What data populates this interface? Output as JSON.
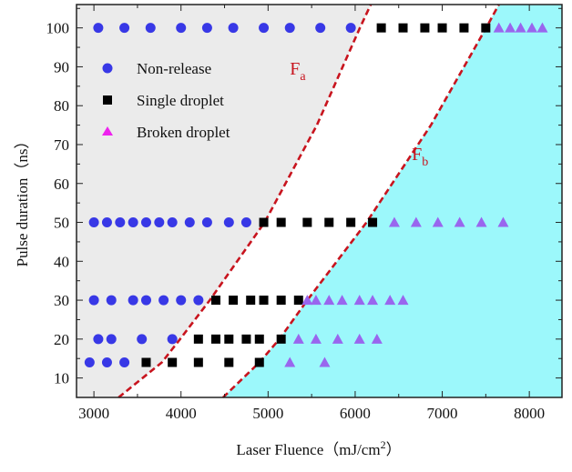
{
  "chart_data": {
    "type": "scatter",
    "title": "",
    "xlabel": "Laser Fluence（mJ/cm²）",
    "xlabel_main": "Laser Fluence（mJ/cm",
    "xlabel_sup": "2",
    "xlabel_end": "）",
    "ylabel": "Pulse duration（ns）",
    "xlim": [
      2800,
      8375
    ],
    "ylim": [
      5,
      106
    ],
    "xticks": [
      3000,
      4000,
      5000,
      6000,
      7000,
      8000
    ],
    "yticks": [
      10,
      20,
      30,
      40,
      50,
      60,
      70,
      80,
      90,
      100
    ],
    "grid": false,
    "legend_position": "top-left",
    "colors": {
      "non_release": "#3838e6",
      "single_droplet": "#000000",
      "broken_droplet": "#9966ee",
      "broken_droplet_legend": "#ee22ee",
      "curve": "#c8141e",
      "region_left": "#ebebeb",
      "region_right": "#9cf8fb"
    },
    "series": [
      {
        "name": "Non-release",
        "marker": "circle",
        "points": [
          [
            3050,
            100
          ],
          [
            3350,
            100
          ],
          [
            3650,
            100
          ],
          [
            4000,
            100
          ],
          [
            4300,
            100
          ],
          [
            4600,
            100
          ],
          [
            4950,
            100
          ],
          [
            5250,
            100
          ],
          [
            5600,
            100
          ],
          [
            5950,
            100
          ],
          [
            3000,
            50
          ],
          [
            3150,
            50
          ],
          [
            3300,
            50
          ],
          [
            3450,
            50
          ],
          [
            3600,
            50
          ],
          [
            3750,
            50
          ],
          [
            3900,
            50
          ],
          [
            4100,
            50
          ],
          [
            4300,
            50
          ],
          [
            4550,
            50
          ],
          [
            4750,
            50
          ],
          [
            3000,
            30
          ],
          [
            3200,
            30
          ],
          [
            3450,
            30
          ],
          [
            3600,
            30
          ],
          [
            3800,
            30
          ],
          [
            4000,
            30
          ],
          [
            4200,
            30
          ],
          [
            3050,
            20
          ],
          [
            3200,
            20
          ],
          [
            3550,
            20
          ],
          [
            3900,
            20
          ],
          [
            2950,
            14
          ],
          [
            3150,
            14
          ],
          [
            3350,
            14
          ]
        ]
      },
      {
        "name": "Single droplet",
        "marker": "square",
        "points": [
          [
            6300,
            100
          ],
          [
            6550,
            100
          ],
          [
            6800,
            100
          ],
          [
            7000,
            100
          ],
          [
            7250,
            100
          ],
          [
            7500,
            100
          ],
          [
            4950,
            50
          ],
          [
            5150,
            50
          ],
          [
            5450,
            50
          ],
          [
            5700,
            50
          ],
          [
            5950,
            50
          ],
          [
            6200,
            50
          ],
          [
            4400,
            30
          ],
          [
            4600,
            30
          ],
          [
            4800,
            30
          ],
          [
            4950,
            30
          ],
          [
            5150,
            30
          ],
          [
            5350,
            30
          ],
          [
            4200,
            20
          ],
          [
            4400,
            20
          ],
          [
            4550,
            20
          ],
          [
            4750,
            20
          ],
          [
            4900,
            20
          ],
          [
            5150,
            20
          ],
          [
            3600,
            14
          ],
          [
            3900,
            14
          ],
          [
            4200,
            14
          ],
          [
            4550,
            14
          ],
          [
            4900,
            14
          ]
        ]
      },
      {
        "name": "Broken droplet",
        "marker": "triangle",
        "points": [
          [
            7650,
            100
          ],
          [
            7780,
            100
          ],
          [
            7900,
            100
          ],
          [
            8030,
            100
          ],
          [
            8150,
            100
          ],
          [
            6450,
            50
          ],
          [
            6700,
            50
          ],
          [
            6950,
            50
          ],
          [
            7200,
            50
          ],
          [
            7450,
            50
          ],
          [
            7700,
            50
          ],
          [
            5450,
            30
          ],
          [
            5550,
            30
          ],
          [
            5700,
            30
          ],
          [
            5850,
            30
          ],
          [
            6050,
            30
          ],
          [
            6200,
            30
          ],
          [
            6400,
            30
          ],
          [
            6550,
            30
          ],
          [
            5350,
            20
          ],
          [
            5550,
            20
          ],
          [
            5800,
            20
          ],
          [
            6050,
            20
          ],
          [
            6250,
            20
          ],
          [
            5250,
            14
          ],
          [
            5650,
            14
          ]
        ]
      }
    ],
    "boundaries": [
      {
        "name": "F",
        "subscript": "a",
        "points": [
          [
            3283,
            5
          ],
          [
            3780,
            14
          ],
          [
            3990,
            20
          ],
          [
            4330,
            30
          ],
          [
            4960,
            50
          ],
          [
            5560,
            75
          ],
          [
            6054,
            100
          ],
          [
            6180,
            106
          ]
        ],
        "label_at": [
          5250,
          88
        ]
      },
      {
        "name": "F",
        "subscript": "b",
        "points": [
          [
            4483,
            5
          ],
          [
            4900,
            14
          ],
          [
            5130,
            20
          ],
          [
            5450,
            30
          ],
          [
            6130,
            50
          ],
          [
            6870,
            75
          ],
          [
            7504,
            100
          ],
          [
            7650,
            106
          ]
        ],
        "label_at": [
          6650,
          66
        ]
      }
    ]
  }
}
